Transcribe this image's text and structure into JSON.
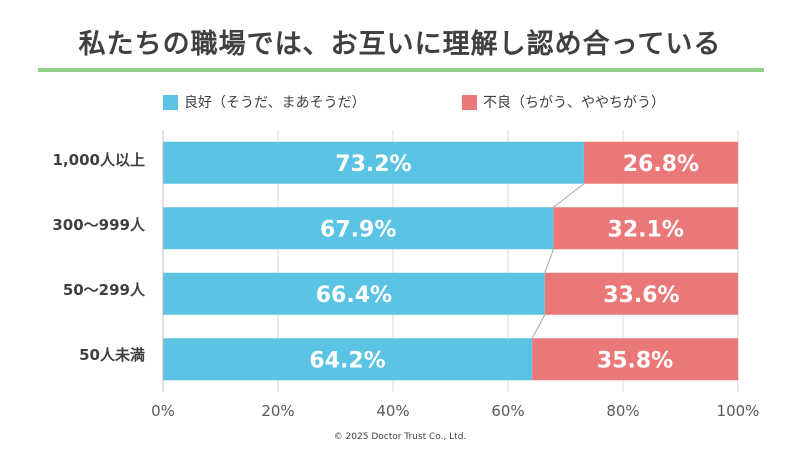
{
  "title": "私たちの職場では、お互いに理解し認め合っている",
  "legend": [
    {
      "label": "良好（そうだ、まあそうだ）",
      "color": "#5bc3e3"
    },
    {
      "label": "不良（ちがう、ややちがう）",
      "color": "#ea7878"
    }
  ],
  "footer": "© 2025 Doctor Trust Co., Ltd.",
  "chart_data": {
    "type": "bar",
    "orientation": "horizontal",
    "stacked": true,
    "title": "私たちの職場では、お互いに理解し認め合っている",
    "categories": [
      "1,000人以上",
      "300～999人",
      "50～299人",
      "50人未満"
    ],
    "series": [
      {
        "name": "良好（そうだ、まあそうだ）",
        "values": [
          73.2,
          67.9,
          66.4,
          64.2
        ],
        "labels": [
          "73.2%",
          "67.9%",
          "66.4%",
          "64.2%"
        ],
        "color": "#5bc3e3"
      },
      {
        "name": "不良（ちがう、ややちがう）",
        "values": [
          26.8,
          32.1,
          33.6,
          35.8
        ],
        "labels": [
          "26.8%",
          "32.1%",
          "33.6%",
          "35.8%"
        ],
        "color": "#ea7878"
      }
    ],
    "xticks": [
      "0%",
      "20%",
      "40%",
      "60%",
      "80%",
      "100%"
    ],
    "xlim": [
      0,
      100
    ],
    "grid": true,
    "series_lines": true,
    "legend_position": "top"
  }
}
